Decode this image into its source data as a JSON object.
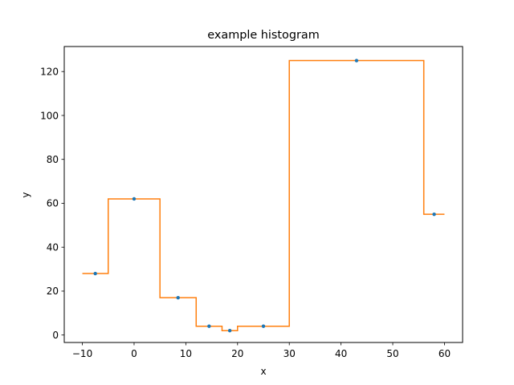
{
  "chart_data": {
    "type": "line",
    "title": "example histogram",
    "xlabel": "x",
    "ylabel": "y",
    "xlim": [
      -13.5,
      63.5
    ],
    "ylim": [
      -3.4,
      131.4
    ],
    "xticks": [
      -10,
      0,
      10,
      20,
      30,
      40,
      50,
      60
    ],
    "xtick_labels": [
      "−10",
      "0",
      "10",
      "20",
      "30",
      "40",
      "50",
      "60"
    ],
    "yticks": [
      0,
      20,
      40,
      60,
      80,
      100,
      120
    ],
    "ytick_labels": [
      "0",
      "20",
      "40",
      "60",
      "80",
      "100",
      "120"
    ],
    "grid": false,
    "series": [
      {
        "kind": "step",
        "color": "#ff7f0e",
        "bin_edges": [
          -10,
          -5,
          5,
          12,
          17,
          20,
          30,
          56,
          60
        ],
        "values": [
          28,
          62,
          17,
          4,
          2,
          4,
          125,
          55
        ]
      },
      {
        "kind": "points",
        "color": "#1f77b4",
        "x": [
          -7.5,
          0,
          8.5,
          14.5,
          18.5,
          25,
          43,
          58
        ],
        "y": [
          28,
          62,
          17,
          4,
          2,
          4,
          125,
          55
        ]
      }
    ]
  }
}
